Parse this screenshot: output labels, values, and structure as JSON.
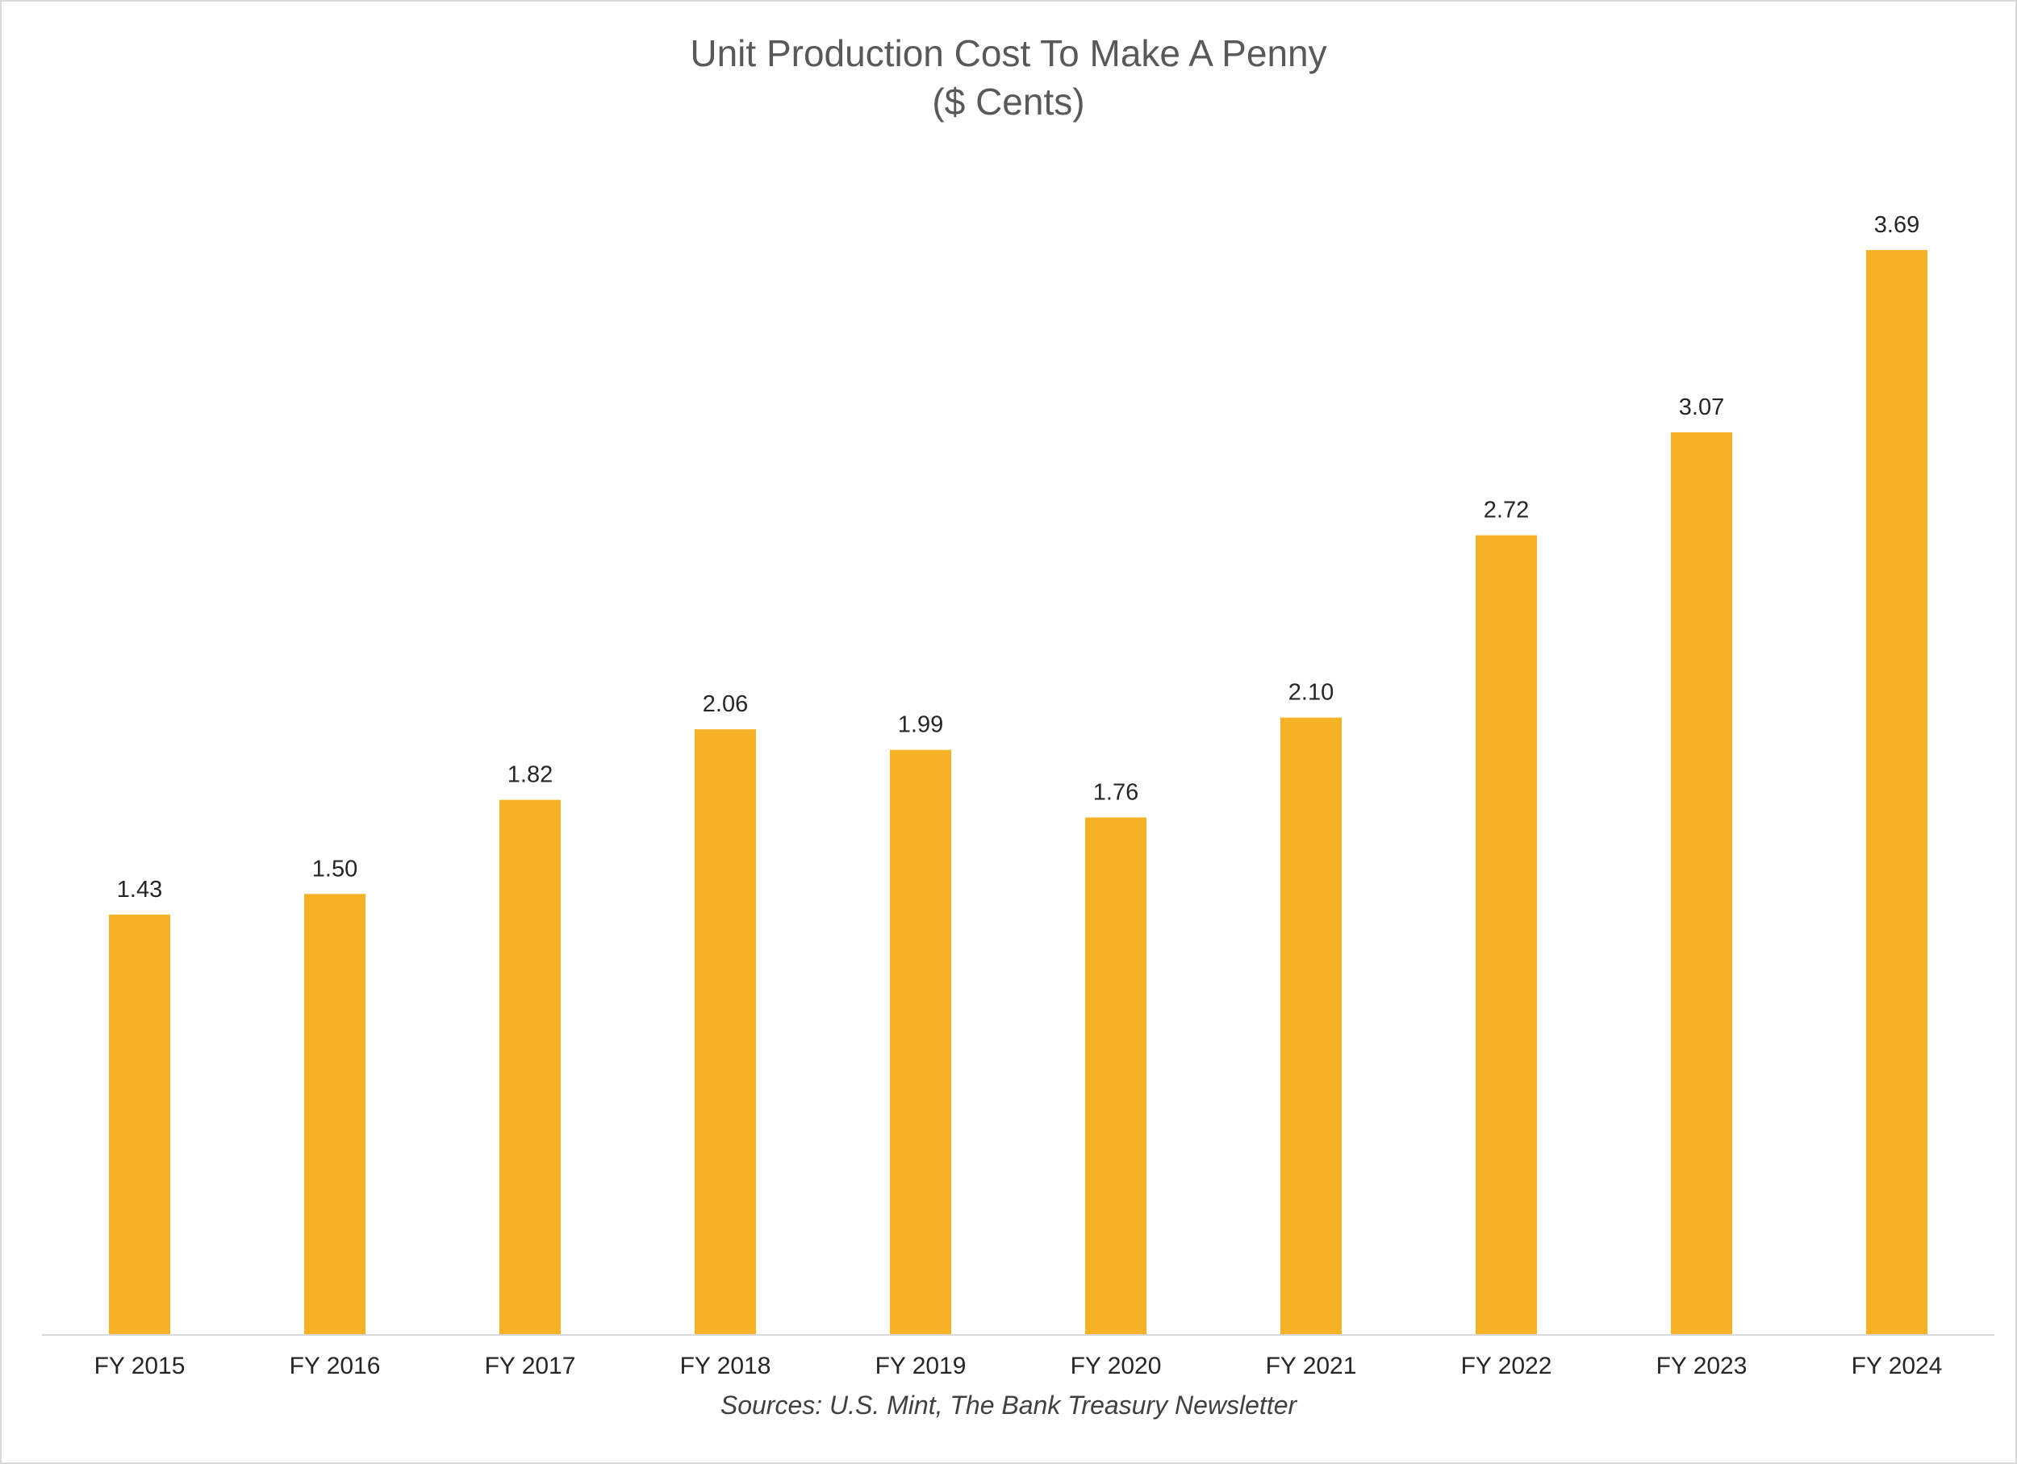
{
  "chart_data": {
    "type": "bar",
    "title": "Unit Production Cost To Make A Penny",
    "subtitle": "($ Cents)",
    "xlabel": "",
    "ylabel": "",
    "categories": [
      "FY 2015",
      "FY 2016",
      "FY 2017",
      "FY 2018",
      "FY 2019",
      "FY 2020",
      "FY 2021",
      "FY 2022",
      "FY 2023",
      "FY 2024"
    ],
    "values": [
      1.43,
      1.5,
      1.82,
      2.06,
      1.99,
      1.76,
      2.1,
      2.72,
      3.07,
      3.69
    ],
    "value_labels": [
      "1.43",
      "1.50",
      "1.82",
      "2.06",
      "1.99",
      "1.76",
      "2.10",
      "2.72",
      "3.07",
      "3.69"
    ],
    "ylim": [
      0,
      3.69
    ],
    "grid": false,
    "legend": "none",
    "bar_color": "#f6b226",
    "source": "Sources: U.S. Mint, The Bank Treasury Newsletter"
  }
}
